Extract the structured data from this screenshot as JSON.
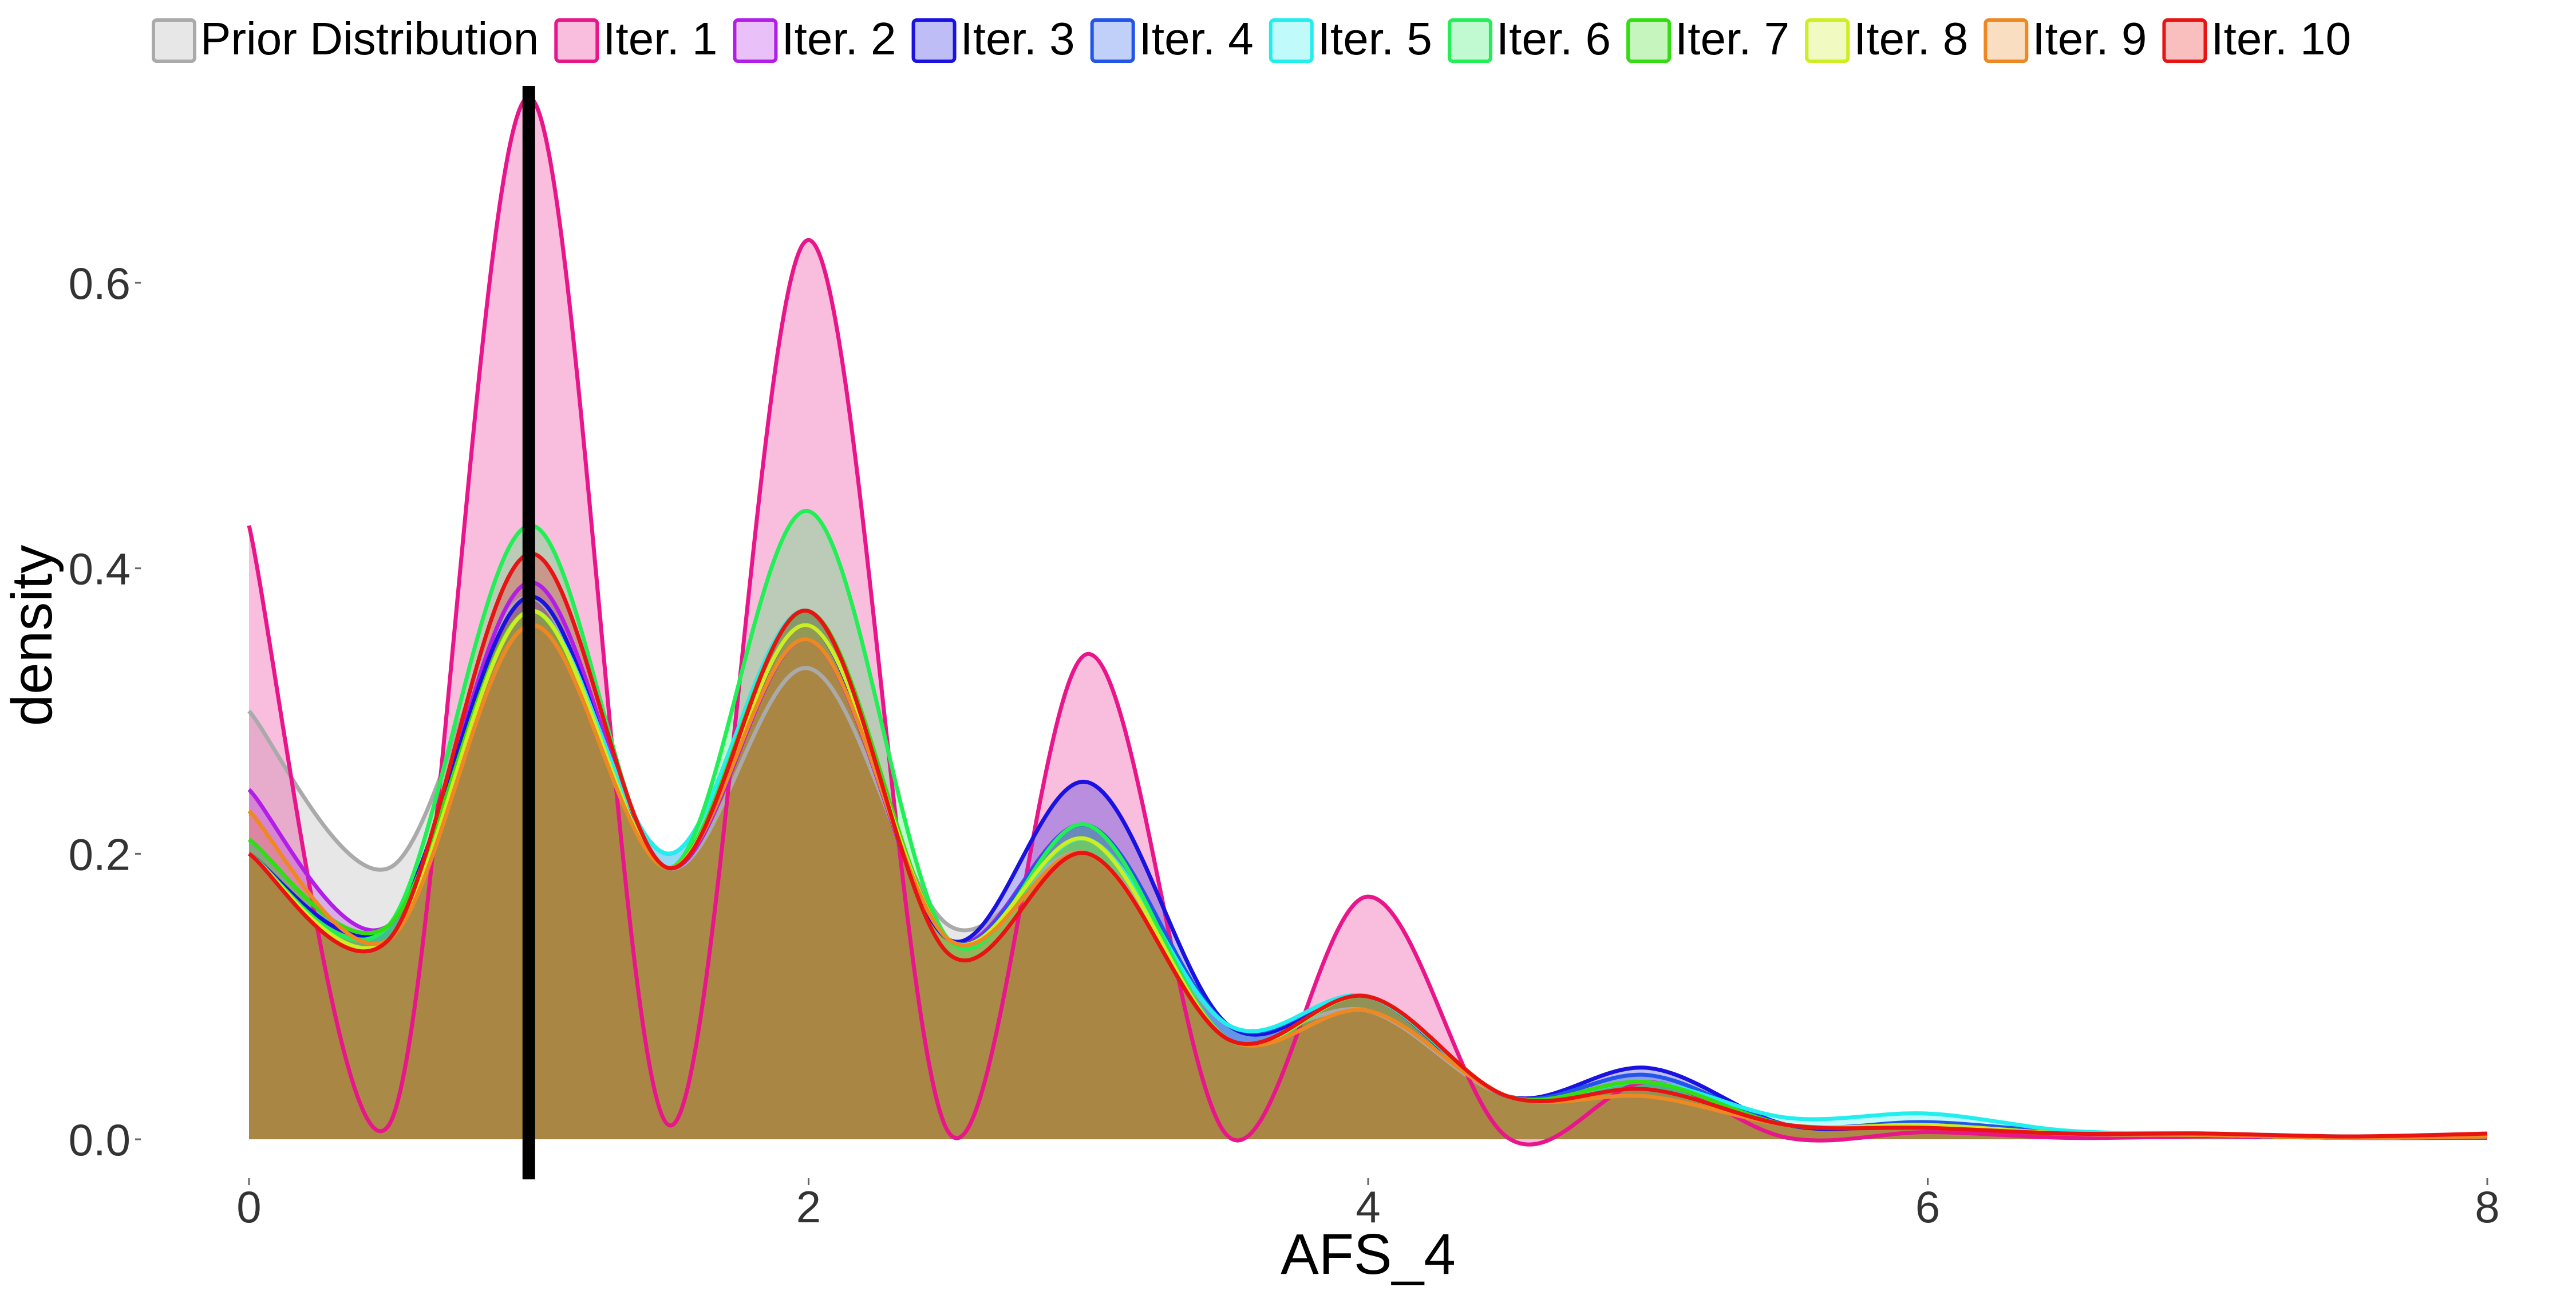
{
  "chart_data": {
    "type": "area",
    "title": "",
    "xlabel": "AFS_4",
    "ylabel": "density",
    "xlim": [
      0,
      8
    ],
    "ylim": [
      0,
      0.75
    ],
    "x_ticks": [
      0,
      2,
      4,
      6,
      8
    ],
    "y_ticks": [
      0.0,
      0.2,
      0.4,
      0.6
    ],
    "x_tick_labels": [
      "0",
      "2",
      "4",
      "6",
      "8"
    ],
    "y_tick_labels": [
      "0.0",
      "0.2",
      "0.4",
      "0.6"
    ],
    "grid": false,
    "legend_position": "top",
    "reference_line": {
      "x": 1,
      "color": "#000000"
    },
    "x": [
      0,
      0.5,
      1,
      1.5,
      2,
      2.5,
      3,
      3.5,
      4,
      4.5,
      5,
      5.5,
      6,
      6.5,
      7,
      7.5,
      8
    ],
    "series": [
      {
        "name": "Prior Distribution",
        "color": "#AAAAAA",
        "values": [
          0.3,
          0.19,
          0.38,
          0.19,
          0.33,
          0.15,
          0.2,
          0.08,
          0.09,
          0.03,
          0.04,
          0.01,
          0.01,
          0.005,
          0.003,
          0.001,
          0.001
        ]
      },
      {
        "name": "Iter. 1",
        "color": "#E8168A",
        "values": [
          0.43,
          0.01,
          0.73,
          0.01,
          0.63,
          0.005,
          0.34,
          0.002,
          0.17,
          0.001,
          0.04,
          0.001,
          0.005,
          0.001,
          0.002,
          0.001,
          0.001
        ]
      },
      {
        "name": "Iter. 2",
        "color": "#B21EE8",
        "values": [
          0.245,
          0.15,
          0.39,
          0.19,
          0.35,
          0.14,
          0.22,
          0.08,
          0.1,
          0.03,
          0.04,
          0.01,
          0.01,
          0.005,
          0.004,
          0.001,
          0.002
        ]
      },
      {
        "name": "Iter. 3",
        "color": "#1A12E0",
        "values": [
          0.2,
          0.15,
          0.38,
          0.19,
          0.36,
          0.14,
          0.25,
          0.08,
          0.1,
          0.03,
          0.05,
          0.01,
          0.01,
          0.005,
          0.003,
          0.001,
          0.002
        ]
      },
      {
        "name": "Iter. 4",
        "color": "#2255E8",
        "values": [
          0.21,
          0.15,
          0.37,
          0.2,
          0.37,
          0.14,
          0.22,
          0.08,
          0.1,
          0.03,
          0.045,
          0.01,
          0.012,
          0.005,
          0.003,
          0.001,
          0.002
        ]
      },
      {
        "name": "Iter. 5",
        "color": "#22EEEE",
        "values": [
          0.21,
          0.15,
          0.37,
          0.2,
          0.37,
          0.14,
          0.21,
          0.08,
          0.1,
          0.03,
          0.04,
          0.015,
          0.018,
          0.006,
          0.004,
          0.002,
          0.003
        ]
      },
      {
        "name": "Iter. 6",
        "color": "#22EE55",
        "values": [
          0.2,
          0.15,
          0.43,
          0.19,
          0.44,
          0.14,
          0.22,
          0.07,
          0.1,
          0.03,
          0.04,
          0.01,
          0.01,
          0.004,
          0.003,
          0.001,
          0.002
        ]
      },
      {
        "name": "Iter. 7",
        "color": "#33DD11",
        "values": [
          0.21,
          0.15,
          0.37,
          0.19,
          0.37,
          0.14,
          0.21,
          0.07,
          0.1,
          0.03,
          0.04,
          0.01,
          0.01,
          0.004,
          0.003,
          0.001,
          0.002
        ]
      },
      {
        "name": "Iter. 8",
        "color": "#CCEE22",
        "values": [
          0.2,
          0.14,
          0.37,
          0.19,
          0.36,
          0.14,
          0.21,
          0.07,
          0.1,
          0.03,
          0.035,
          0.01,
          0.01,
          0.004,
          0.003,
          0.001,
          0.002
        ]
      },
      {
        "name": "Iter. 9",
        "color": "#EE8822",
        "values": [
          0.23,
          0.14,
          0.36,
          0.19,
          0.35,
          0.14,
          0.2,
          0.07,
          0.09,
          0.03,
          0.03,
          0.01,
          0.008,
          0.004,
          0.003,
          0.001,
          0.002
        ]
      },
      {
        "name": "Iter. 10",
        "color": "#E81414",
        "values": [
          0.2,
          0.14,
          0.41,
          0.19,
          0.37,
          0.13,
          0.2,
          0.07,
          0.1,
          0.03,
          0.035,
          0.01,
          0.008,
          0.004,
          0.004,
          0.002,
          0.004
        ]
      }
    ]
  }
}
